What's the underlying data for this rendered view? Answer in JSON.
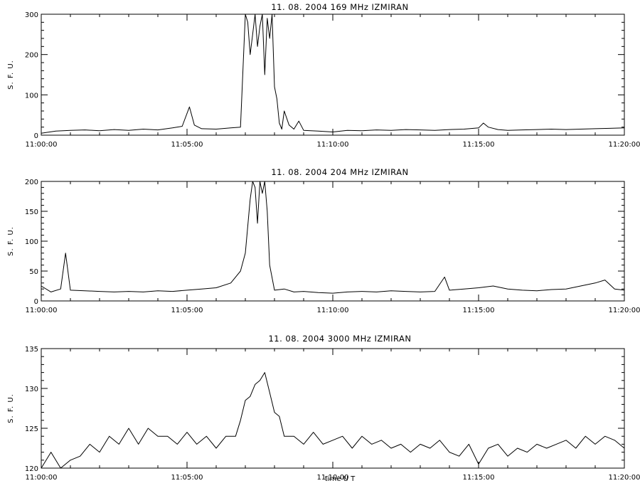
{
  "chart_data": [
    {
      "type": "line",
      "title": "11.  08.  2004    169 MHz    IZMIRAN",
      "ylabel": "S. F. U.",
      "xlabel": "",
      "ylim": [
        0,
        300
      ],
      "yticks": [
        0,
        100,
        200,
        300
      ],
      "xlim": [
        "11:00:00",
        "11:20:00"
      ],
      "xticks": [
        "11:00:00",
        "11:05:00",
        "11:10:00",
        "11:15:00",
        "11:20:00"
      ],
      "grid": false,
      "series": [
        {
          "x": [
            "11:00:00",
            "11:00:30",
            "11:01:00",
            "11:01:30",
            "11:02:00",
            "11:02:30",
            "11:03:00",
            "11:03:30",
            "11:04:00",
            "11:04:30",
            "11:04:50",
            "11:05:05",
            "11:05:15",
            "11:05:30",
            "11:06:00",
            "11:06:30",
            "11:06:50",
            "11:07:00",
            "11:07:05",
            "11:07:10",
            "11:07:15",
            "11:07:20",
            "11:07:25",
            "11:07:30",
            "11:07:35",
            "11:07:40",
            "11:07:45",
            "11:07:50",
            "11:07:55",
            "11:08:00",
            "11:08:05",
            "11:08:10",
            "11:08:15",
            "11:08:20",
            "11:08:30",
            "11:08:40",
            "11:08:50",
            "11:09:00",
            "11:09:30",
            "11:10:00",
            "11:10:30",
            "11:11:00",
            "11:11:30",
            "11:12:00",
            "11:12:30",
            "11:13:00",
            "11:13:30",
            "11:14:00",
            "11:14:30",
            "11:15:00",
            "11:15:10",
            "11:15:20",
            "11:15:40",
            "11:16:00",
            "11:16:30",
            "11:17:00",
            "11:17:30",
            "11:18:00",
            "11:18:30",
            "11:19:00",
            "11:19:30",
            "11:20:00"
          ],
          "y": [
            5,
            10,
            12,
            13,
            11,
            14,
            12,
            15,
            13,
            18,
            22,
            70,
            25,
            16,
            15,
            18,
            20,
            300,
            280,
            200,
            250,
            300,
            220,
            270,
            300,
            150,
            290,
            240,
            300,
            120,
            90,
            30,
            15,
            60,
            25,
            15,
            35,
            12,
            10,
            8,
            12,
            11,
            13,
            12,
            14,
            13,
            12,
            14,
            15,
            18,
            30,
            20,
            14,
            12,
            13,
            14,
            15,
            14,
            15,
            16,
            17,
            18
          ]
        }
      ]
    },
    {
      "type": "line",
      "title": "11.  08.  2004    204 MHz    IZMIRAN",
      "ylabel": "S. F. U.",
      "xlabel": "",
      "ylim": [
        0,
        200
      ],
      "yticks": [
        0,
        50,
        100,
        150,
        200
      ],
      "xlim": [
        "11:00:00",
        "11:20:00"
      ],
      "xticks": [
        "11:00:00",
        "11:05:00",
        "11:10:00",
        "11:15:00",
        "11:20:00"
      ],
      "grid": false,
      "series": [
        {
          "x": [
            "11:00:00",
            "11:00:20",
            "11:00:40",
            "11:00:50",
            "11:01:00",
            "11:01:30",
            "11:02:00",
            "11:02:30",
            "11:03:00",
            "11:03:30",
            "11:04:00",
            "11:04:30",
            "11:05:00",
            "11:05:30",
            "11:06:00",
            "11:06:30",
            "11:06:50",
            "11:07:00",
            "11:07:10",
            "11:07:15",
            "11:07:20",
            "11:07:25",
            "11:07:30",
            "11:07:35",
            "11:07:40",
            "11:07:45",
            "11:07:50",
            "11:08:00",
            "11:08:20",
            "11:08:40",
            "11:09:00",
            "11:09:30",
            "11:10:00",
            "11:10:30",
            "11:11:00",
            "11:11:30",
            "11:12:00",
            "11:12:30",
            "11:13:00",
            "11:13:30",
            "11:13:50",
            "11:14:00",
            "11:14:30",
            "11:15:00",
            "11:15:30",
            "11:16:00",
            "11:16:30",
            "11:17:00",
            "11:17:30",
            "11:18:00",
            "11:18:30",
            "11:19:00",
            "11:19:20",
            "11:19:40",
            "11:20:00"
          ],
          "y": [
            25,
            15,
            20,
            80,
            18,
            17,
            16,
            15,
            16,
            15,
            17,
            16,
            18,
            20,
            22,
            30,
            50,
            80,
            170,
            200,
            190,
            130,
            200,
            180,
            200,
            150,
            60,
            18,
            20,
            15,
            16,
            14,
            13,
            15,
            16,
            15,
            17,
            16,
            15,
            16,
            40,
            18,
            20,
            22,
            25,
            20,
            18,
            17,
            19,
            20,
            25,
            30,
            35,
            20,
            18
          ]
        }
      ]
    },
    {
      "type": "line",
      "title": "11.  08.  2004    3000 MHz    IZMIRAN",
      "ylabel": "S. F. U.",
      "xlabel": "time  U T",
      "ylim": [
        120,
        135
      ],
      "yticks": [
        120,
        125,
        130,
        135
      ],
      "xlim": [
        "11:00:00",
        "11:20:00"
      ],
      "xticks": [
        "11:00:00",
        "11:05:00",
        "11:10:00",
        "11:15:00",
        "11:20:00"
      ],
      "grid": false,
      "series": [
        {
          "x": [
            "11:00:00",
            "11:00:20",
            "11:00:40",
            "11:01:00",
            "11:01:20",
            "11:01:40",
            "11:02:00",
            "11:02:20",
            "11:02:40",
            "11:03:00",
            "11:03:20",
            "11:03:40",
            "11:04:00",
            "11:04:20",
            "11:04:40",
            "11:05:00",
            "11:05:20",
            "11:05:40",
            "11:06:00",
            "11:06:20",
            "11:06:40",
            "11:06:50",
            "11:07:00",
            "11:07:10",
            "11:07:20",
            "11:07:30",
            "11:07:40",
            "11:07:50",
            "11:08:00",
            "11:08:10",
            "11:08:20",
            "11:08:40",
            "11:09:00",
            "11:09:20",
            "11:09:40",
            "11:10:00",
            "11:10:20",
            "11:10:40",
            "11:11:00",
            "11:11:20",
            "11:11:40",
            "11:12:00",
            "11:12:20",
            "11:12:40",
            "11:13:00",
            "11:13:20",
            "11:13:40",
            "11:14:00",
            "11:14:20",
            "11:14:40",
            "11:15:00",
            "11:15:20",
            "11:15:40",
            "11:16:00",
            "11:16:20",
            "11:16:40",
            "11:17:00",
            "11:17:20",
            "11:17:40",
            "11:18:00",
            "11:18:20",
            "11:18:40",
            "11:19:00",
            "11:19:20",
            "11:19:40",
            "11:20:00"
          ],
          "y": [
            120,
            122,
            120,
            121,
            121.5,
            123,
            122,
            124,
            123,
            125,
            123,
            125,
            124,
            124,
            123,
            124.5,
            123,
            124,
            122.5,
            124,
            124,
            126,
            128.5,
            129,
            130.5,
            131,
            132,
            129.5,
            127,
            126.5,
            124,
            124,
            123,
            124.5,
            123,
            123.5,
            124,
            122.5,
            124,
            123,
            123.5,
            122.5,
            123,
            122,
            123,
            122.5,
            123.5,
            122,
            121.5,
            123,
            120.5,
            122.5,
            123,
            121.5,
            122.5,
            122,
            123,
            122.5,
            123,
            123.5,
            122.5,
            124,
            123,
            124,
            123.5,
            122.5
          ]
        }
      ]
    }
  ]
}
